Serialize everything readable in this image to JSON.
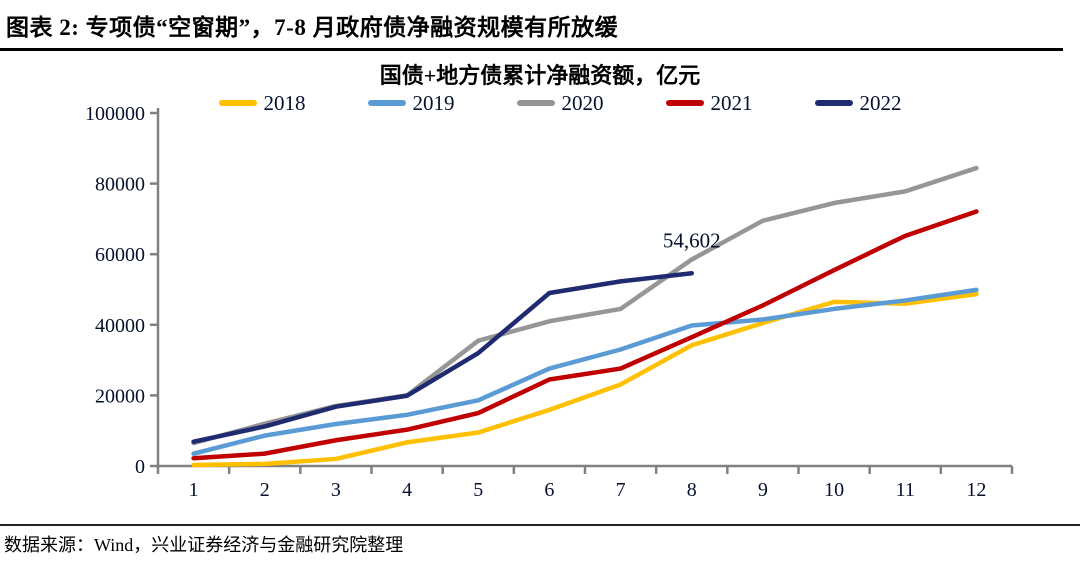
{
  "header": {
    "title": "图表 2: 专项债“空窗期”，7-8 月政府债净融资规模有所放缓"
  },
  "chart_data": {
    "type": "line",
    "title": "国债+地方债累计净融资额，亿元",
    "unit": "亿元",
    "categories": [
      1,
      2,
      3,
      4,
      5,
      6,
      7,
      8,
      9,
      10,
      11,
      12
    ],
    "series": [
      {
        "name": "2018",
        "color": "#FFC000",
        "values": [
          300,
          600,
          2000,
          6700,
          9500,
          15900,
          23100,
          34200,
          40500,
          46500,
          46000,
          48700
        ]
      },
      {
        "name": "2019",
        "color": "#5B9BD5",
        "values": [
          3500,
          8600,
          11900,
          14500,
          18600,
          27600,
          33000,
          39800,
          41500,
          44500,
          46900,
          49900
        ]
      },
      {
        "name": "2020",
        "color": "#969696",
        "values": [
          6500,
          12000,
          17000,
          20000,
          35500,
          41000,
          44500,
          58500,
          69500,
          74500,
          77800,
          84400
        ]
      },
      {
        "name": "2021",
        "color": "#C00000",
        "values": [
          2200,
          3500,
          7300,
          10300,
          15000,
          24500,
          27600,
          36500,
          45500,
          55500,
          65200,
          72100
        ]
      },
      {
        "name": "2022",
        "color": "#1F2A70",
        "values": [
          6900,
          11200,
          16800,
          19900,
          32000,
          49000,
          52300,
          54602
        ]
      }
    ],
    "annotation": {
      "text": "54,602",
      "series": "2022",
      "month": 8,
      "value": 54602
    },
    "ylim": [
      0,
      100000
    ],
    "ytick_step": 20000,
    "ytick_labels": [
      "0",
      "20000",
      "40000",
      "60000",
      "80000",
      "100000"
    ],
    "xtick_labels": [
      "1",
      "2",
      "3",
      "4",
      "5",
      "6",
      "7",
      "8",
      "9",
      "10",
      "11",
      "12"
    ],
    "grid": false,
    "legend_position": "top"
  },
  "footer": {
    "source": "数据来源：Wind，兴业证券经济与金融研究院整理"
  }
}
